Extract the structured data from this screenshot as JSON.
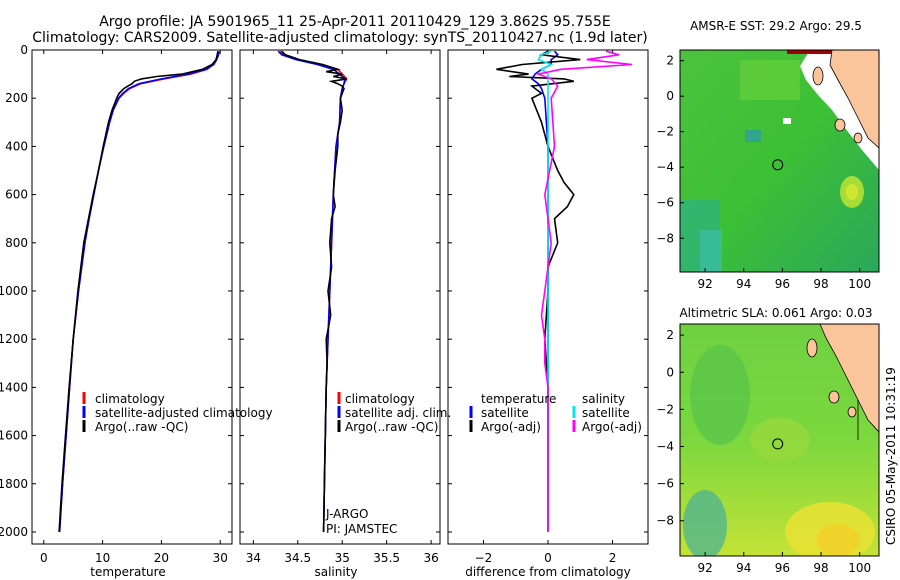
{
  "header": {
    "line1": "Argo profile: JA 5901965_11 25-Apr-2011 20110429_129 3.862S 95.755E",
    "line2": "Climatology: CARS2009. Satellite-adjusted climatology: synTS_20110427.nc (1.9d later)"
  },
  "side_stamp": "CSIRO 05-May-2011 10:31:19",
  "colors": {
    "clim": "#ff0000",
    "sat": "#0000ff",
    "argo": "#000000",
    "sal_sat": "#00e5ee",
    "sal_argo": "#ff00ff",
    "land": "#fbc59c",
    "sst_hot": "#a50000"
  },
  "chart_data": [
    {
      "type": "line",
      "id": "temperature",
      "xlabel": "temperature",
      "xlim": [
        -2,
        32
      ],
      "ylim": [
        2050,
        0
      ],
      "xticks": [
        0,
        10,
        20,
        30
      ],
      "yticks": [
        0,
        200,
        400,
        600,
        800,
        1000,
        1200,
        1400,
        1600,
        1800,
        2000
      ],
      "legend": [
        "climatology",
        "satellite-adjusted climatology",
        "Argo(..raw -QC)"
      ],
      "series": [
        {
          "name": "climatology",
          "depth": [
            5,
            20,
            40,
            60,
            80,
            100,
            120,
            140,
            160,
            180,
            200,
            250,
            300,
            400,
            500,
            600,
            700,
            800,
            1000,
            1200,
            1400,
            1600,
            1800,
            2000
          ],
          "values": [
            29.6,
            29.5,
            29.3,
            28.8,
            27.8,
            25.0,
            20.5,
            16.5,
            14.6,
            13.6,
            12.8,
            11.8,
            11.2,
            10.2,
            9.3,
            8.5,
            7.7,
            7.0,
            5.9,
            5.0,
            4.4,
            3.8,
            3.2,
            2.7
          ]
        },
        {
          "name": "satellite-adjusted climatology",
          "depth": [
            5,
            20,
            40,
            60,
            80,
            100,
            120,
            140,
            160,
            180,
            200,
            250,
            300,
            400,
            500,
            600,
            700,
            800,
            1000,
            1200,
            1400,
            1600,
            1800,
            2000
          ],
          "values": [
            29.8,
            29.7,
            29.4,
            28.9,
            27.6,
            24.6,
            20.0,
            16.2,
            14.4,
            13.4,
            12.7,
            11.8,
            11.2,
            10.2,
            9.3,
            8.5,
            7.7,
            7.0,
            5.9,
            5.0,
            4.4,
            3.8,
            3.2,
            2.7
          ]
        },
        {
          "name": "Argo(..raw -QC)",
          "depth": [
            5,
            20,
            40,
            60,
            80,
            100,
            110,
            120,
            130,
            140,
            150,
            160,
            180,
            200,
            250,
            300,
            400,
            500,
            600,
            700,
            800,
            1000,
            1200,
            1400,
            1600,
            1800,
            2000
          ],
          "values": [
            29.6,
            29.5,
            29.3,
            28.6,
            27.0,
            23.5,
            19.2,
            16.6,
            15.4,
            15.0,
            14.3,
            13.6,
            12.8,
            12.4,
            11.6,
            11.0,
            10.1,
            9.3,
            8.4,
            7.6,
            6.8,
            5.8,
            5.0,
            4.3,
            3.7,
            3.1,
            2.6
          ]
        }
      ]
    },
    {
      "type": "line",
      "id": "salinity",
      "xlabel": "salinity",
      "xlim": [
        33.85,
        36.1
      ],
      "ylim": [
        2050,
        0
      ],
      "xticks": [
        34,
        34.5,
        35,
        35.5,
        36
      ],
      "legend": [
        "climatology",
        "satellite adj. clim.",
        "Argo(..raw -QC)"
      ],
      "annotation": [
        "J-ARGO",
        "PI: JAMSTEC"
      ],
      "series": [
        {
          "name": "climatology",
          "depth": [
            5,
            20,
            40,
            60,
            80,
            100,
            120,
            140,
            160,
            200,
            300,
            400,
            600,
            800,
            1000,
            1200,
            1400,
            1600,
            1800,
            2000
          ],
          "values": [
            34.3,
            34.35,
            34.5,
            34.75,
            34.95,
            35.0,
            35.05,
            35.02,
            35.0,
            34.98,
            34.97,
            34.93,
            34.9,
            34.88,
            34.86,
            34.84,
            34.82,
            34.81,
            34.8,
            34.79
          ]
        },
        {
          "name": "satellite adj. clim.",
          "depth": [
            5,
            20,
            40,
            60,
            80,
            100,
            120,
            140,
            160,
            200,
            300,
            400,
            600,
            800,
            1000,
            1200,
            1400,
            1600,
            1800,
            2000
          ],
          "values": [
            34.28,
            34.32,
            34.48,
            34.72,
            34.9,
            34.97,
            35.03,
            35.02,
            35.0,
            34.98,
            34.97,
            34.93,
            34.9,
            34.88,
            34.86,
            34.84,
            34.82,
            34.81,
            34.8,
            34.79
          ]
        },
        {
          "name": "Argo(..raw -QC)",
          "depth": [
            5,
            20,
            40,
            60,
            80,
            90,
            100,
            110,
            120,
            130,
            140,
            150,
            160,
            180,
            200,
            250,
            300,
            350,
            400,
            500,
            600,
            650,
            700,
            800,
            900,
            1000,
            1100,
            1200,
            1300,
            1400,
            1600,
            1800,
            2000
          ],
          "values": [
            34.32,
            34.36,
            34.52,
            34.78,
            34.95,
            34.82,
            35.0,
            34.9,
            35.05,
            34.88,
            34.95,
            35.0,
            35.02,
            35.0,
            34.98,
            35.0,
            34.98,
            34.95,
            34.95,
            34.92,
            34.9,
            34.92,
            34.88,
            34.86,
            34.88,
            34.84,
            34.87,
            34.82,
            34.83,
            34.82,
            34.81,
            34.8,
            34.79
          ]
        }
      ]
    },
    {
      "type": "line",
      "id": "difference",
      "xlabel": "difference from climatology",
      "xlim": [
        -3.1,
        3.1
      ],
      "ylim": [
        2050,
        0
      ],
      "xticks": [
        -2,
        0,
        2
      ],
      "legend_temperature": {
        "heading": "temperature",
        "items": [
          "satellite",
          "Argo(-adj)"
        ]
      },
      "legend_salinity": {
        "heading": "salinity",
        "items": [
          "satellite",
          "Argo(-adj)"
        ]
      },
      "series": [
        {
          "name": "temperature satellite",
          "depth": [
            5,
            20,
            40,
            60,
            80,
            100,
            120,
            140,
            160,
            200,
            400,
            800,
            1200,
            1600,
            2000
          ],
          "values": [
            0.2,
            0.3,
            0.1,
            0.1,
            -0.2,
            -0.4,
            -0.5,
            -0.3,
            -0.2,
            -0.1,
            0,
            0,
            0,
            0,
            0
          ]
        },
        {
          "name": "temperature Argo(-adj)",
          "depth": [
            5,
            20,
            40,
            60,
            80,
            100,
            110,
            120,
            130,
            150,
            180,
            200,
            300,
            400,
            500,
            550,
            600,
            650,
            700,
            800,
            900,
            1000,
            1200,
            1400,
            1600,
            1800,
            2000
          ],
          "values": [
            0,
            -0.2,
            1.0,
            -0.8,
            -1.6,
            -0.6,
            -1.2,
            0.5,
            0.8,
            -0.5,
            -0.2,
            -0.5,
            -0.2,
            0,
            0.3,
            0.5,
            0.8,
            0.6,
            0.2,
            0.3,
            0,
            0,
            -0.1,
            0,
            0,
            0,
            0
          ]
        },
        {
          "name": "salinity satellite",
          "depth": [
            5,
            20,
            40,
            60,
            80,
            100,
            150,
            200,
            400,
            800,
            1200,
            1600,
            2000
          ],
          "values": [
            0.1,
            -0.2,
            -0.3,
            0.1,
            -0.2,
            0,
            0,
            0,
            0,
            0,
            0,
            0,
            0
          ]
        },
        {
          "name": "salinity Argo(-adj)",
          "depth": [
            5,
            20,
            40,
            60,
            80,
            100,
            120,
            150,
            200,
            400,
            600,
            800,
            1000,
            1100,
            1200,
            1300,
            1400,
            1500,
            1600,
            1800,
            2000
          ],
          "values": [
            1.8,
            2.2,
            1.2,
            2.6,
            0.4,
            -0.3,
            0.1,
            0.3,
            0.1,
            0.2,
            -0.1,
            0.1,
            -0.1,
            -0.2,
            -0.1,
            -0.1,
            0,
            0,
            0,
            0,
            0
          ]
        }
      ]
    },
    {
      "type": "heatmap",
      "id": "sst_map",
      "title": "AMSR-E SST: 29.2 Argo: 29.5",
      "xticks": [
        92,
        94,
        96,
        98,
        100
      ],
      "yticks": [
        2,
        0,
        -2,
        -4,
        -6,
        -8
      ],
      "xlim": [
        90.7,
        101.0
      ],
      "ylim": [
        -9.9,
        2.6
      ],
      "argo_position": {
        "lon": 95.755,
        "lat": -3.862
      }
    },
    {
      "type": "heatmap",
      "id": "sla_map",
      "title": "Altimetric SLA: 0.061 Argo: 0.03",
      "xticks": [
        92,
        94,
        96,
        98,
        100
      ],
      "yticks": [
        2,
        0,
        -2,
        -4,
        -6,
        -8
      ],
      "xlim": [
        90.7,
        101.0
      ],
      "ylim": [
        -9.9,
        2.6
      ],
      "argo_position": {
        "lon": 95.755,
        "lat": -3.862
      }
    }
  ]
}
